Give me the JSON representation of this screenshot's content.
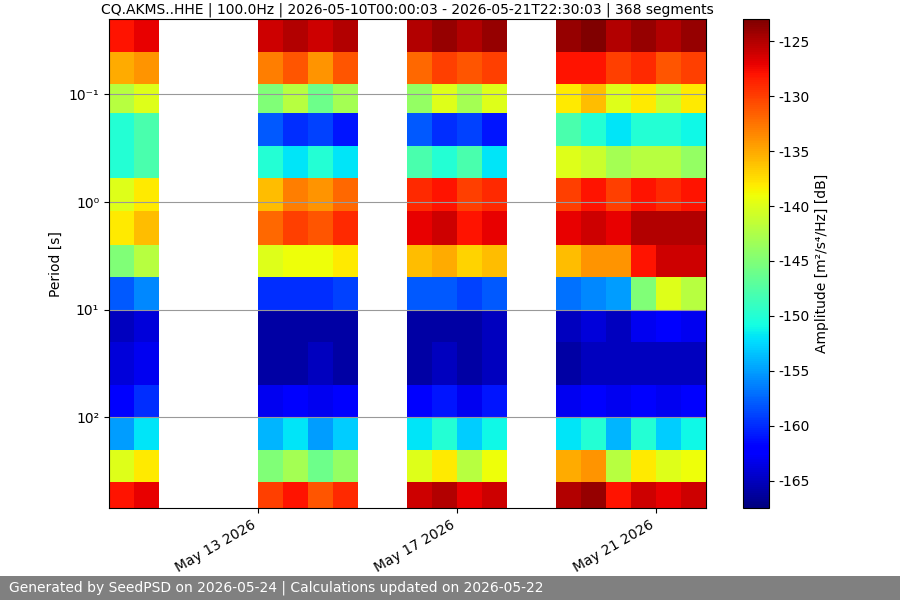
{
  "chart_data": {
    "type": "heatmap",
    "title": "CQ.AKMS..HHE | 100.0Hz | 2026-05-10T00:00:03 - 2026-05-21T22:30:03 | 368 segments",
    "y_label": "Period [s]",
    "footer": "Generated by SeedPSD on 2026-05-24 | Calculations updated on 2026-05-22",
    "color": "jet",
    "log": "y",
    "grid": true,
    "x": [
      "2026-05-10T00:00",
      "2026-05-10T12:00",
      "2026-05-11T00:00",
      "2026-05-11T12:00",
      "2026-05-12T00:00",
      "2026-05-12T12:00",
      "2026-05-13T00:00",
      "2026-05-13T12:00",
      "2026-05-14T00:00",
      "2026-05-14T12:00",
      "2026-05-15T00:00",
      "2026-05-15T12:00",
      "2026-05-16T00:00",
      "2026-05-16T12:00",
      "2026-05-17T00:00",
      "2026-05-17T12:00",
      "2026-05-18T00:00",
      "2026-05-18T12:00",
      "2026-05-19T00:00",
      "2026-05-19T12:00",
      "2026-05-20T00:00",
      "2026-05-20T12:00",
      "2026-05-21T00:00",
      "2026-05-21T12:00"
    ],
    "xlim": [
      "2026-05-10T00:00",
      "2026-05-22T00:00"
    ],
    "xticks": [
      {
        "value": "2026-05-13T00:00",
        "label": "May 13 2026"
      },
      {
        "value": "2026-05-17T00:00",
        "label": "May 17 2026"
      },
      {
        "value": "2026-05-21T00:00",
        "label": "May 21 2026"
      }
    ],
    "period_bins": [
      0.02,
      0.04,
      0.08,
      0.15,
      0.3,
      0.6,
      1.2,
      2.5,
      5,
      10,
      20,
      50,
      100,
      200,
      400,
      700
    ],
    "ylim": [
      700,
      0.02
    ],
    "yticks": [
      {
        "value": 0.1,
        "label": "10⁻¹"
      },
      {
        "value": 1,
        "label": "10⁰"
      },
      {
        "value": 10,
        "label": "10¹"
      },
      {
        "value": 100,
        "label": "10²"
      }
    ],
    "cells": [
      [
        -128,
        -127,
        null,
        null,
        null,
        null,
        -126,
        -125,
        -126,
        -125,
        null,
        null,
        -125,
        -124,
        -125,
        -124,
        null,
        null,
        -124,
        -123,
        -125,
        -124,
        -125,
        -124
      ],
      [
        -135,
        -134,
        null,
        null,
        null,
        null,
        -133,
        -131,
        -134,
        -131,
        null,
        null,
        -132,
        -130,
        -131,
        -130,
        null,
        null,
        -128,
        -128,
        -130,
        -129,
        -131,
        -130
      ],
      [
        -142,
        -140,
        null,
        null,
        null,
        null,
        -145,
        -142,
        -146,
        -143,
        null,
        null,
        -144,
        -140,
        -143,
        -140,
        null,
        null,
        -138,
        -136,
        -140,
        -138,
        -141,
        -138
      ],
      [
        -150,
        -148,
        null,
        null,
        null,
        null,
        -158,
        -160,
        -159,
        -161,
        null,
        null,
        -158,
        -160,
        -159,
        -161,
        null,
        null,
        -148,
        -150,
        -152,
        -150,
        -150,
        -151
      ],
      [
        -150,
        -148,
        null,
        null,
        null,
        null,
        -150,
        -152,
        -150,
        -152,
        null,
        null,
        -148,
        -150,
        -148,
        -152,
        null,
        null,
        -140,
        -141,
        -143,
        -142,
        -142,
        -144
      ],
      [
        -140,
        -138,
        null,
        null,
        null,
        null,
        -136,
        -133,
        -134,
        -132,
        null,
        null,
        -129,
        -128,
        -130,
        -129,
        null,
        null,
        -130,
        -128,
        -130,
        -128,
        -129,
        -128
      ],
      [
        -138,
        -136,
        null,
        null,
        null,
        null,
        -132,
        -130,
        -131,
        -129,
        null,
        null,
        -127,
        -126,
        -128,
        -127,
        null,
        null,
        -127,
        -126,
        -127,
        -125,
        -125,
        -125
      ],
      [
        -145,
        -142,
        null,
        null,
        null,
        null,
        -140,
        -139,
        -139,
        -138,
        null,
        null,
        -136,
        -135,
        -137,
        -136,
        null,
        null,
        -136,
        -134,
        -134,
        -128,
        -126,
        -126
      ],
      [
        -158,
        -156,
        null,
        null,
        null,
        null,
        -160,
        -160,
        -160,
        -159,
        null,
        null,
        -158,
        -158,
        -159,
        -158,
        null,
        null,
        -157,
        -156,
        -155,
        -145,
        -140,
        -142
      ],
      [
        -165,
        -164,
        null,
        null,
        null,
        null,
        -166,
        -166,
        -166,
        -166,
        null,
        null,
        -166,
        -166,
        -166,
        -165,
        null,
        null,
        -165,
        -164,
        -165,
        -163,
        -162,
        -163
      ],
      [
        -164,
        -163,
        null,
        null,
        null,
        null,
        -166,
        -166,
        -165,
        -166,
        null,
        null,
        -166,
        -165,
        -166,
        -165,
        null,
        null,
        -166,
        -165,
        -165,
        -165,
        -165,
        -165
      ],
      [
        -162,
        -160,
        null,
        null,
        null,
        null,
        -163,
        -162,
        -163,
        -162,
        null,
        null,
        -162,
        -161,
        -163,
        -161,
        null,
        null,
        -163,
        -162,
        -163,
        -162,
        -163,
        -162
      ],
      [
        -155,
        -152,
        null,
        null,
        null,
        null,
        -154,
        -152,
        -155,
        -153,
        null,
        null,
        -152,
        -150,
        -153,
        -151,
        null,
        null,
        -152,
        -150,
        -154,
        -150,
        -153,
        -151
      ],
      [
        -140,
        -138,
        null,
        null,
        null,
        null,
        -145,
        -143,
        -146,
        -144,
        null,
        null,
        -140,
        -138,
        -142,
        -139,
        null,
        null,
        -135,
        -134,
        -142,
        -138,
        -140,
        -139
      ],
      [
        -128,
        -127,
        null,
        null,
        null,
        null,
        -130,
        -128,
        -131,
        -129,
        null,
        null,
        -126,
        -125,
        -127,
        -126,
        null,
        null,
        -125,
        -124,
        -128,
        -126,
        -127,
        -126
      ]
    ],
    "colorbar": {
      "label": "Amplitude [m²/s⁴/Hz] [dB]",
      "range": [
        -167.5,
        -123
      ],
      "ticks": [
        -125,
        -130,
        -135,
        -140,
        -145,
        -150,
        -155,
        -160,
        -165
      ]
    }
  }
}
